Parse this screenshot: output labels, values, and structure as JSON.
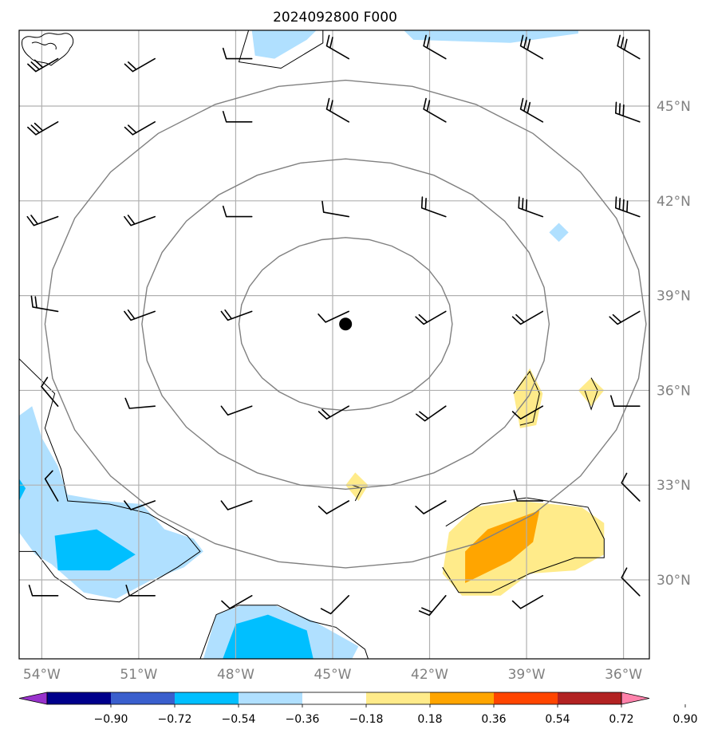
{
  "title": "2024092800 F000",
  "map": {
    "projection": "lat-lon",
    "lon_range": [
      -54.7,
      -35.2
    ],
    "lat_range": [
      27.5,
      47.4
    ],
    "gridlines": true,
    "grid_color": "#b0b0b0",
    "contour_color": "#808080",
    "lon_ticks": [
      {
        "value": -54,
        "label": "54°W"
      },
      {
        "value": -51,
        "label": "51°W"
      },
      {
        "value": -48,
        "label": "48°W"
      },
      {
        "value": -45,
        "label": "45°W"
      },
      {
        "value": -42,
        "label": "42°W"
      },
      {
        "value": -39,
        "label": "39°W"
      },
      {
        "value": -36,
        "label": "36°W"
      }
    ],
    "lat_ticks": [
      {
        "value": 45,
        "label": "45°N"
      },
      {
        "value": 42,
        "label": "42°N"
      },
      {
        "value": 39,
        "label": "39°N"
      },
      {
        "value": 36,
        "label": "36°N"
      },
      {
        "value": 33,
        "label": "33°N"
      },
      {
        "value": 30,
        "label": "30°N"
      }
    ],
    "center_marker": {
      "lon": -44.6,
      "lat": 38.1,
      "color": "#000000"
    },
    "contour_radii_deg": [
      3.3,
      6.3,
      9.3
    ]
  },
  "colorbar": {
    "levels": [
      "−0.90",
      "−0.72",
      "−0.54",
      "−0.36",
      "−0.18",
      "0.18",
      "0.36",
      "0.54",
      "0.72",
      "0.90"
    ],
    "colors": [
      "#9932cc",
      "#00008b",
      "#3a5fcd",
      "#00bfff",
      "#b0e0ff",
      "#ffffff",
      "#ffeb8a",
      "#ffa500",
      "#ff4500",
      "#b22222",
      "#ff82ab"
    ],
    "extend": "both"
  },
  "shading": [
    {
      "level": "#b0e0ff",
      "lonlat": [
        [
          -47.5,
          47.4
        ],
        [
          -47.4,
          46.6
        ],
        [
          -46.8,
          46.5
        ],
        [
          -45.8,
          47.1
        ],
        [
          -45.5,
          47.4
        ]
      ]
    },
    {
      "level": "#b0e0ff",
      "lonlat": [
        [
          -42.8,
          47.4
        ],
        [
          -42.5,
          47.1
        ],
        [
          -39.5,
          47.0
        ],
        [
          -37.4,
          47.3
        ],
        [
          -37.4,
          47.4
        ]
      ]
    },
    {
      "level": "#b0e0ff",
      "lonlat": [
        [
          -38.3,
          41.0
        ],
        [
          -38.0,
          41.3
        ],
        [
          -37.7,
          41.0
        ],
        [
          -38.0,
          40.7
        ]
      ]
    },
    {
      "level": "#b0e0ff",
      "lonlat": [
        [
          -54.7,
          35.2
        ],
        [
          -54.3,
          35.5
        ],
        [
          -54.0,
          34.5
        ],
        [
          -53.5,
          33.6
        ],
        [
          -53.2,
          32.7
        ],
        [
          -52.1,
          32.5
        ],
        [
          -50.9,
          32.4
        ],
        [
          -50.2,
          31.6
        ],
        [
          -49.3,
          31.3
        ],
        [
          -49.0,
          30.9
        ],
        [
          -49.6,
          30.4
        ],
        [
          -50.6,
          30.0
        ],
        [
          -51.7,
          29.4
        ],
        [
          -52.7,
          29.6
        ],
        [
          -53.7,
          30.5
        ],
        [
          -54.2,
          30.8
        ],
        [
          -54.7,
          31.5
        ]
      ]
    },
    {
      "level": "#00bfff",
      "lonlat": [
        [
          -53.6,
          31.4
        ],
        [
          -52.3,
          31.6
        ],
        [
          -51.1,
          30.8
        ],
        [
          -51.9,
          30.3
        ],
        [
          -53.5,
          30.3
        ]
      ]
    },
    {
      "level": "#00bfff",
      "lonlat": [
        [
          -54.7,
          33.2
        ],
        [
          -54.5,
          32.9
        ],
        [
          -54.7,
          32.5
        ]
      ]
    },
    {
      "level": "#b0e0ff",
      "lonlat": [
        [
          -49.0,
          27.5
        ],
        [
          -48.6,
          28.9
        ],
        [
          -47.8,
          29.2
        ],
        [
          -46.8,
          29.2
        ],
        [
          -45.6,
          28.7
        ],
        [
          -44.2,
          27.9
        ],
        [
          -44.4,
          27.5
        ]
      ]
    },
    {
      "level": "#00bfff",
      "lonlat": [
        [
          -48.4,
          27.5
        ],
        [
          -48.0,
          28.6
        ],
        [
          -47.0,
          28.9
        ],
        [
          -45.8,
          28.4
        ],
        [
          -45.6,
          27.5
        ]
      ]
    },
    {
      "level": "#ffeb8a",
      "lonlat": [
        [
          -39.4,
          35.9
        ],
        [
          -38.9,
          36.7
        ],
        [
          -38.5,
          35.9
        ],
        [
          -38.7,
          34.9
        ],
        [
          -39.2,
          34.8
        ]
      ]
    },
    {
      "level": "#ffeb8a",
      "lonlat": [
        [
          -37.0,
          36.4
        ],
        [
          -36.6,
          36.0
        ],
        [
          -37.0,
          35.5
        ],
        [
          -37.4,
          36.0
        ]
      ]
    },
    {
      "level": "#ffeb8a",
      "lonlat": [
        [
          -44.3,
          33.4
        ],
        [
          -43.9,
          33.0
        ],
        [
          -44.2,
          32.5
        ],
        [
          -44.6,
          33.0
        ]
      ]
    },
    {
      "level": "#ffeb8a",
      "lonlat": [
        [
          -41.4,
          31.5
        ],
        [
          -40.6,
          32.3
        ],
        [
          -39.2,
          32.5
        ],
        [
          -37.3,
          32.3
        ],
        [
          -36.6,
          31.8
        ],
        [
          -36.6,
          30.8
        ],
        [
          -37.5,
          30.3
        ],
        [
          -38.9,
          30.2
        ],
        [
          -39.8,
          29.5
        ],
        [
          -41.0,
          29.5
        ],
        [
          -41.6,
          30.2
        ]
      ]
    },
    {
      "level": "#ffa500",
      "lonlat": [
        [
          -40.9,
          30.9
        ],
        [
          -40.2,
          31.6
        ],
        [
          -38.6,
          32.2
        ],
        [
          -38.8,
          31.2
        ],
        [
          -39.5,
          30.6
        ],
        [
          -40.9,
          29.9
        ]
      ]
    }
  ],
  "outlines": [
    {
      "lonlat": [
        [
          -54.7,
          37.0
        ],
        [
          -53.6,
          35.9
        ],
        [
          -53.9,
          34.8
        ],
        [
          -53.4,
          33.5
        ],
        [
          -53.2,
          32.5
        ],
        [
          -51.9,
          32.4
        ],
        [
          -50.7,
          32.1
        ],
        [
          -49.5,
          31.4
        ],
        [
          -49.1,
          30.9
        ],
        [
          -49.8,
          30.4
        ],
        [
          -50.8,
          29.8
        ],
        [
          -51.6,
          29.3
        ],
        [
          -52.6,
          29.4
        ],
        [
          -53.6,
          30.1
        ],
        [
          -54.2,
          30.9
        ],
        [
          -54.7,
          30.9
        ]
      ]
    },
    {
      "lonlat": [
        [
          -47.6,
          47.4
        ],
        [
          -47.9,
          46.4
        ],
        [
          -46.6,
          46.2
        ],
        [
          -45.3,
          47.0
        ],
        [
          -45.3,
          47.4
        ]
      ]
    },
    {
      "lonlat": [
        [
          -49.1,
          27.5
        ],
        [
          -48.6,
          28.9
        ],
        [
          -47.9,
          29.2
        ],
        [
          -46.7,
          29.2
        ],
        [
          -45.7,
          28.7
        ],
        [
          -44.9,
          28.5
        ],
        [
          -44.0,
          27.8
        ],
        [
          -43.9,
          27.5
        ]
      ]
    },
    {
      "lonlat": [
        [
          -39.4,
          35.9
        ],
        [
          -38.9,
          36.6
        ],
        [
          -38.6,
          35.9
        ],
        [
          -38.8,
          35.0
        ],
        [
          -39.2,
          34.9
        ]
      ]
    },
    {
      "lonlat": [
        [
          -37.0,
          36.4
        ],
        [
          -36.8,
          36.0
        ],
        [
          -37.0,
          35.4
        ],
        [
          -37.2,
          36.0
        ]
      ]
    },
    {
      "lonlat": [
        [
          -44.4,
          33.0
        ],
        [
          -44.1,
          32.9
        ],
        [
          -44.3,
          32.5
        ]
      ]
    },
    {
      "lonlat": [
        [
          -41.5,
          31.7
        ],
        [
          -40.4,
          32.4
        ],
        [
          -39.0,
          32.6
        ],
        [
          -37.1,
          32.3
        ],
        [
          -36.6,
          31.3
        ],
        [
          -36.6,
          30.7
        ],
        [
          -37.5,
          30.7
        ],
        [
          -38.9,
          30.2
        ],
        [
          -40.1,
          29.6
        ],
        [
          -41.1,
          29.6
        ],
        [
          -41.6,
          30.4
        ]
      ]
    }
  ],
  "barbs": {
    "lons": [
      -53.5,
      -50.5,
      -47.5,
      -44.5,
      -41.5,
      -38.5,
      -35.5
    ],
    "lats": [
      46.5,
      44.5,
      41.5,
      38.5,
      35.5,
      32.5,
      29.5
    ],
    "dirs": [
      [
        240,
        240,
        270,
        300,
        300,
        300,
        300
      ],
      [
        240,
        240,
        270,
        300,
        300,
        300,
        290
      ],
      [
        250,
        250,
        270,
        280,
        290,
        290,
        290
      ],
      [
        280,
        250,
        250,
        245,
        240,
        240,
        240
      ],
      [
        320,
        265,
        250,
        240,
        235,
        240,
        270
      ],
      [
        330,
        250,
        250,
        240,
        240,
        270,
        315
      ],
      [
        270,
        270,
        240,
        225,
        220,
        240,
        315
      ]
    ],
    "nbarbs": [
      [
        3,
        2,
        1,
        2,
        2,
        3,
        3
      ],
      [
        3,
        2,
        1,
        2,
        2,
        3,
        3
      ],
      [
        2,
        2,
        1,
        1,
        2,
        3,
        4
      ],
      [
        2,
        2,
        2,
        1,
        2,
        2,
        2
      ],
      [
        1,
        1,
        1,
        2,
        2,
        1,
        1
      ],
      [
        1,
        1,
        1,
        1,
        1,
        1,
        1
      ],
      [
        1,
        1,
        1,
        1,
        2,
        1,
        1
      ]
    ]
  }
}
